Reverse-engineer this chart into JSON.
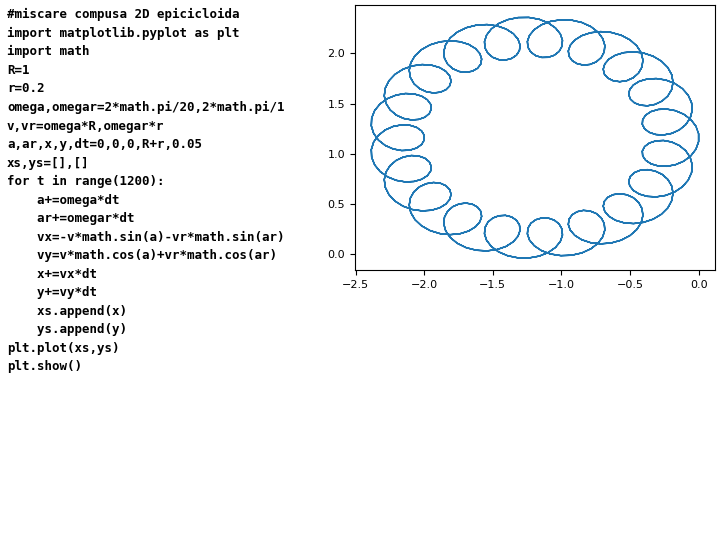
{
  "code_lines": [
    "#miscare compusa 2D epicicloida",
    "import matplotlib.pyplot as plt",
    "import math",
    "R=1",
    "r=0.2",
    "omega,omegar=2*math.pi/20,2*math.pi/1",
    "v,vr=omega*R,omegar*r",
    "a,ar,x,y,dt=0,0,0,R+r,0.05",
    "xs,ys=[],[]",
    "for t in range(1200):",
    "    a+=omega*dt",
    "    ar+=omegar*dt",
    "    vx=-v*math.sin(a)-vr*math.sin(ar)",
    "    vy=v*math.cos(a)+vr*math.cos(ar)",
    "    x+=vx*dt",
    "    y+=vy*dt",
    "    xs.append(x)",
    "    ys.append(y)",
    "plt.plot(xs,ys)",
    "plt.show()"
  ],
  "R": 1,
  "r": 0.2,
  "dt": 0.05,
  "n_steps": 1200,
  "line_color": "#1f77b4",
  "bg_color": "#ffffff",
  "text_color": "#000000",
  "font_family": "monospace",
  "font_size": 9,
  "fig_width": 7.2,
  "fig_height": 5.4,
  "dpi": 100
}
